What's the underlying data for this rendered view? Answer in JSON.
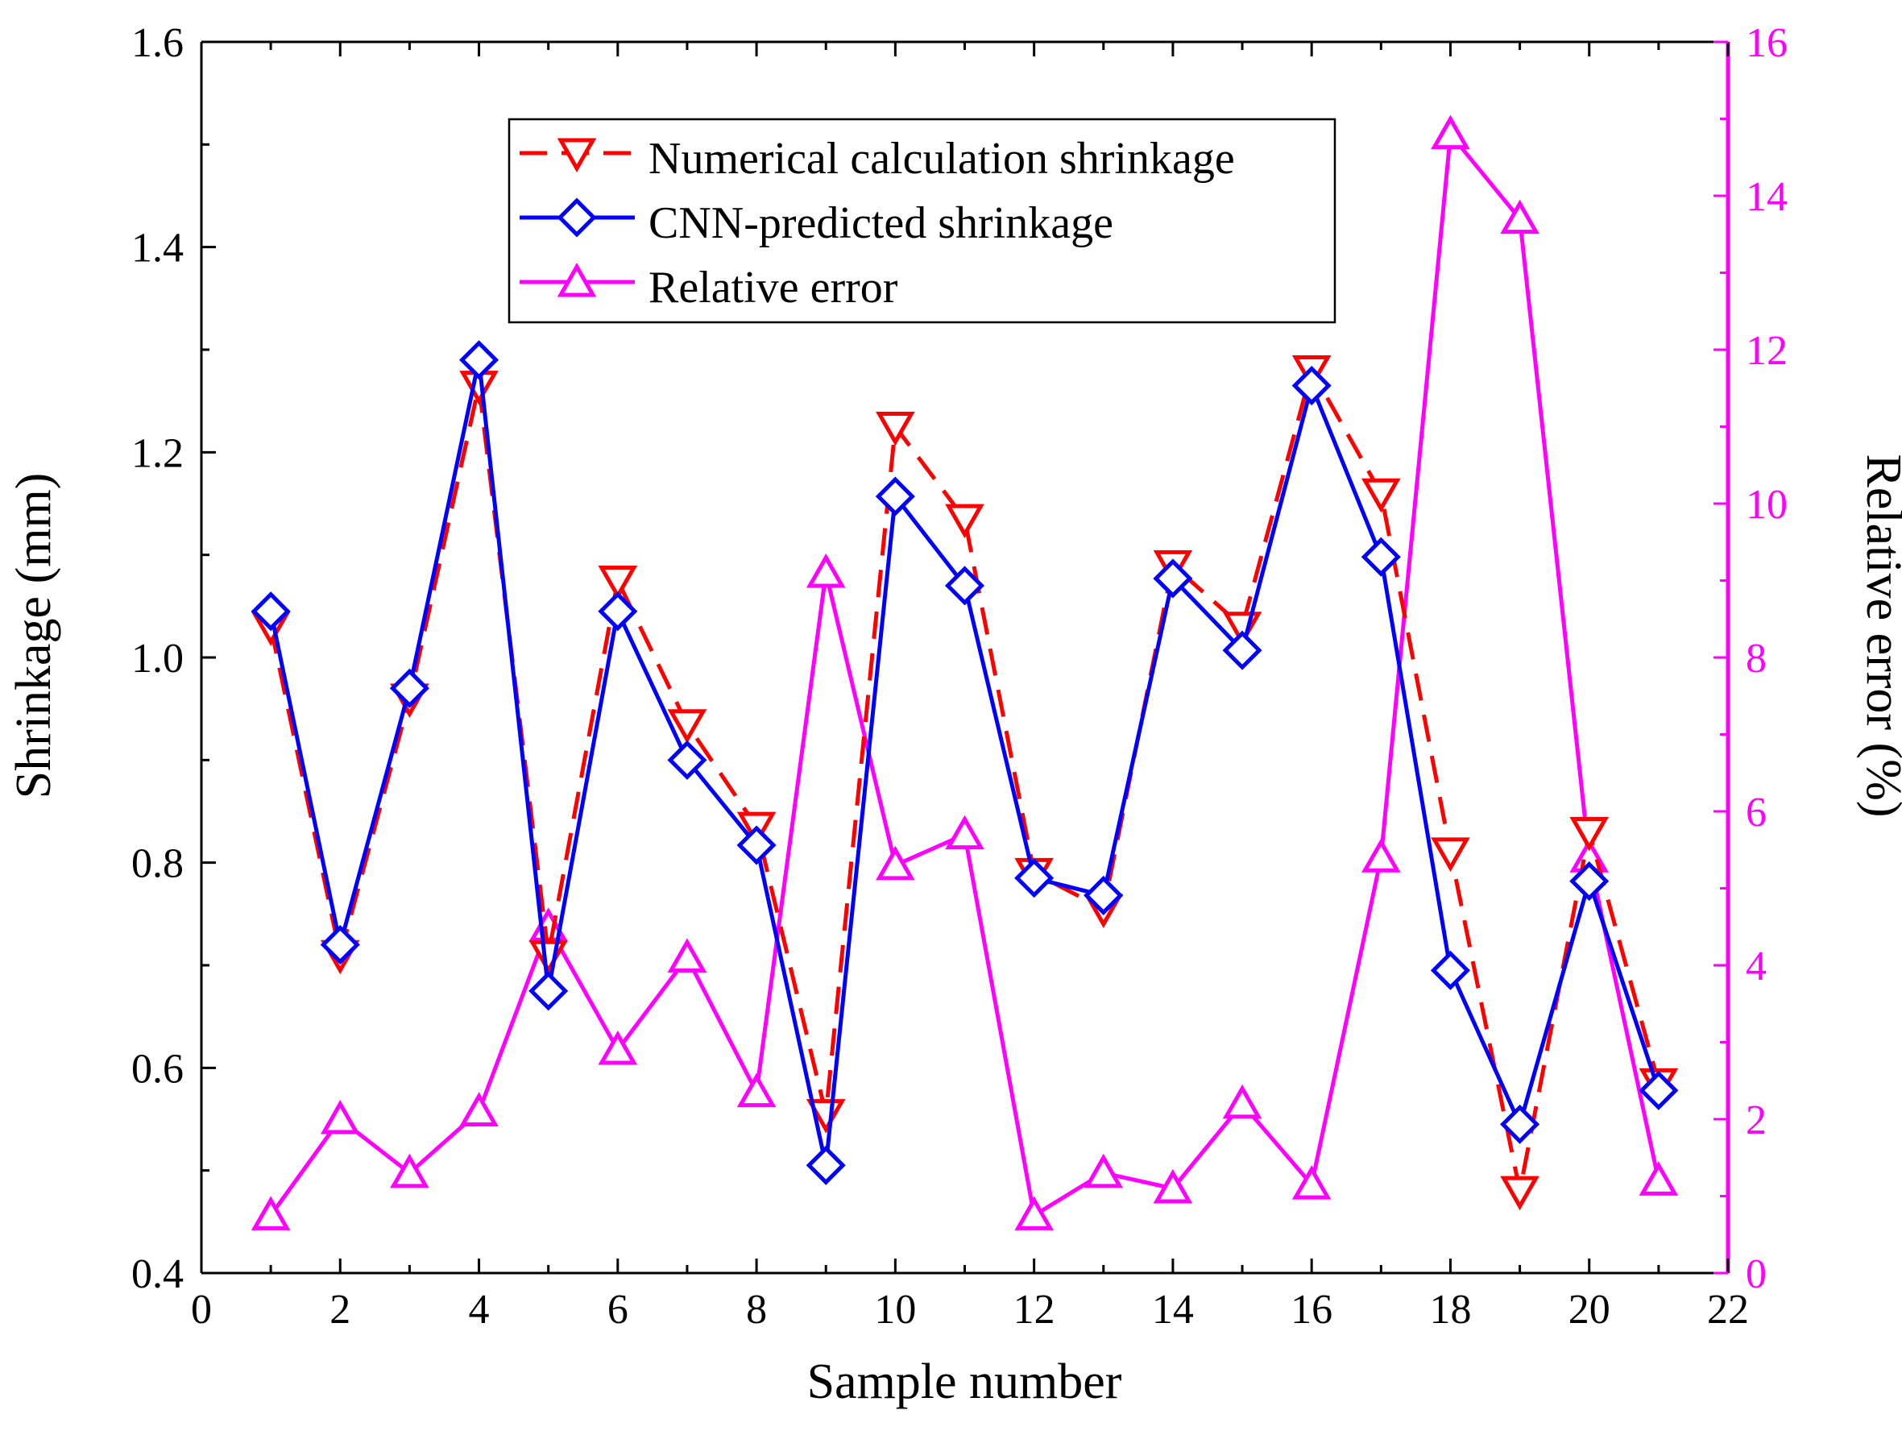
{
  "chart_data": {
    "type": "line",
    "xlabel": "Sample number",
    "ylabel": "Shrinkage (mm)",
    "y2label": "Relative error (%)",
    "xlim": [
      0,
      22
    ],
    "xticks": [
      "0",
      "2",
      "4",
      "6",
      "8",
      "10",
      "12",
      "14",
      "16",
      "18",
      "20",
      "22"
    ],
    "ylim": [
      0.4,
      1.6
    ],
    "yticks": [
      "0.4",
      "0.6",
      "0.8",
      "1.0",
      "1.2",
      "1.4",
      "1.6"
    ],
    "y2lim": [
      0,
      16
    ],
    "y2ticks": [
      "0",
      "2",
      "4",
      "6",
      "8",
      "10",
      "12",
      "14",
      "16"
    ],
    "x": [
      1,
      2,
      3,
      4,
      5,
      6,
      7,
      8,
      9,
      10,
      11,
      12,
      13,
      14,
      15,
      16,
      17,
      18,
      19,
      20,
      21
    ],
    "series": [
      {
        "name": "Numerical calculation shrinkage",
        "axis": "left",
        "color": "#ff0000",
        "marker": "triangle-down",
        "line": "dashed",
        "values": [
          1.03,
          0.71,
          0.96,
          1.265,
          0.71,
          1.075,
          0.935,
          0.835,
          0.555,
          1.225,
          1.135,
          0.79,
          0.755,
          1.09,
          1.03,
          1.28,
          1.16,
          0.81,
          0.48,
          0.83,
          0.585
        ]
      },
      {
        "name": "CNN-predicted shrinkage",
        "axis": "left",
        "color": "#0000ff",
        "marker": "diamond",
        "line": "solid",
        "values": [
          1.045,
          0.72,
          0.97,
          1.29,
          0.675,
          1.045,
          0.9,
          0.817,
          0.505,
          1.157,
          1.07,
          0.785,
          0.768,
          1.077,
          1.007,
          1.265,
          1.098,
          0.695,
          0.545,
          0.782,
          0.578
        ]
      },
      {
        "name": "Relative error",
        "axis": "right",
        "color": "#ff00ff",
        "marker": "triangle-up",
        "line": "solid",
        "values": [
          0.75,
          2.0,
          1.3,
          2.1,
          4.5,
          2.9,
          4.1,
          2.35,
          9.1,
          5.3,
          5.7,
          0.75,
          1.3,
          1.1,
          2.2,
          1.15,
          5.4,
          14.8,
          13.7,
          5.4,
          1.2
        ]
      }
    ]
  }
}
